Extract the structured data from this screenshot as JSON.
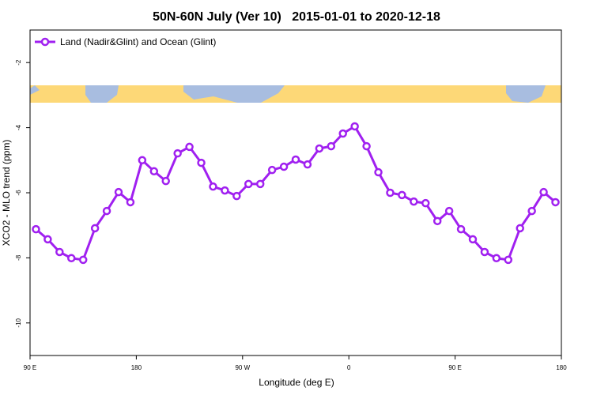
{
  "chart_data": {
    "type": "line",
    "title": "50N-60N July (Ver 10)   2015-01-01 to 2020-12-18",
    "xlabel": "Longitude (deg E)",
    "ylabel": "XCO2 - MLO trend (ppm)",
    "x": [
      95,
      105,
      115,
      125,
      135,
      145,
      155,
      165,
      175,
      185,
      195,
      205,
      215,
      225,
      235,
      245,
      255,
      265,
      275,
      285,
      295,
      305,
      315,
      325,
      335,
      345,
      355,
      365,
      375,
      385,
      395,
      405,
      415,
      425,
      435,
      445,
      455,
      465,
      475,
      485,
      495,
      505,
      515,
      525,
      535
    ],
    "series": [
      {
        "name": "Land (Nadir&Glint) and Ocean (Glint)",
        "color": "#a020f0",
        "values": [
          -7.12,
          -7.43,
          -7.82,
          -8.01,
          -8.06,
          -7.09,
          -6.56,
          -5.98,
          -6.29,
          -5.0,
          -5.34,
          -5.64,
          -4.79,
          -4.59,
          -5.08,
          -5.81,
          -5.93,
          -6.1,
          -5.73,
          -5.73,
          -5.3,
          -5.2,
          -4.98,
          -5.13,
          -4.64,
          -4.57,
          -4.18,
          -3.96,
          -4.57,
          -5.37,
          -6.0,
          -6.07,
          -6.27,
          -6.32,
          -6.87,
          -6.56,
          -7.12,
          -7.43,
          -7.82,
          -8.01,
          -8.06,
          -7.09,
          -6.56,
          -5.98,
          -6.29
        ]
      }
    ],
    "xlim": [
      90,
      540
    ],
    "xticks": [
      {
        "value": 90,
        "label": "90 E"
      },
      180,
      {
        "value": 270,
        "label": "90 W"
      },
      {
        "value": 360,
        "label": "0"
      },
      {
        "value": 450,
        "label": "90 E"
      },
      {
        "value": 540,
        "label": "180"
      }
    ],
    "ylim": [
      -11,
      -1
    ],
    "yticks": [
      -10,
      -8,
      -6,
      -4,
      -2
    ],
    "legend": "top-left"
  }
}
